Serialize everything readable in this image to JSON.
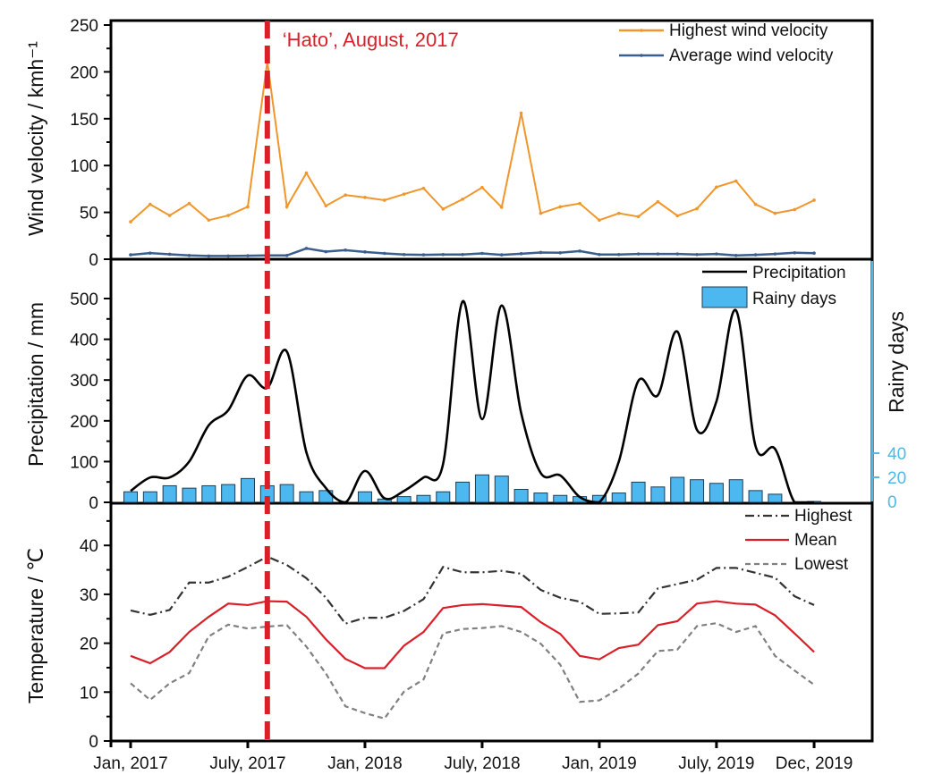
{
  "chart_data": [
    {
      "type": "line",
      "ylabel": "Wind velocity / kmh⁻¹",
      "ylim": [
        0,
        250
      ],
      "yticks": [
        "0",
        "50",
        "100",
        "150",
        "200",
        "250"
      ],
      "legend_placement": "top-right",
      "annotation": "‘Hato’, August, 2017",
      "annotation_month": "2017-08",
      "series": [
        {
          "name": "Highest wind velocity",
          "color": "#f0962a",
          "values": [
            40,
            58.6,
            46.7,
            59.5,
            41.7,
            46.7,
            56,
            211,
            56,
            92,
            57,
            68.5,
            66,
            63,
            69.5,
            75.7,
            53.6,
            64,
            76.6,
            55.5,
            156,
            49,
            56,
            59.5,
            41.7,
            49,
            45.5,
            61.4,
            46.4,
            54,
            77,
            83.5,
            58.6,
            49,
            53,
            63
          ]
        },
        {
          "name": "Average wind velocity",
          "color": "#3a5f8f",
          "values": [
            4.7,
            6.5,
            5.3,
            4,
            3.4,
            3.4,
            3.7,
            4,
            4,
            11.5,
            8.1,
            9.7,
            7.8,
            6.2,
            5,
            4.7,
            5,
            5,
            6.2,
            4.7,
            5.9,
            7.2,
            6.9,
            8.7,
            5,
            5,
            5.6,
            5.6,
            5.6,
            5,
            5.6,
            4,
            4.7,
            5.6,
            6.9,
            6.5
          ]
        }
      ]
    },
    {
      "type": "line+bar",
      "ylabel": "Precipitation / mm",
      "ylim": [
        0,
        500
      ],
      "yticks": [
        "0",
        "100",
        "200",
        "300",
        "400",
        "500"
      ],
      "y2label": "Rainy days",
      "y2ticks": [
        "0",
        "20",
        "40"
      ],
      "y2color": "#4fb8e8",
      "legend_placement": "top-right",
      "series": [
        {
          "name": "Precipitation",
          "kind": "line",
          "color": "#000000",
          "values": [
            28,
            61,
            61,
            100,
            189,
            226,
            311,
            281,
            370,
            123,
            35,
            0,
            77,
            10,
            28,
            61,
            94,
            493,
            204,
            483,
            219,
            72,
            66,
            13,
            0,
            100,
            298,
            263,
            419,
            178,
            248,
            471,
            138,
            131,
            0,
            0
          ]
        },
        {
          "name": "Rainy days",
          "kind": "bar",
          "axis": "right",
          "color": "#4db8f0",
          "values": [
            8,
            8,
            13,
            11,
            13,
            14,
            19,
            13,
            14,
            8,
            9,
            null,
            8,
            2,
            4,
            5,
            8,
            16,
            22,
            21,
            10,
            7,
            5,
            4,
            5,
            7,
            16,
            12,
            20,
            18,
            15,
            18,
            9,
            6,
            null,
            0
          ]
        }
      ]
    },
    {
      "type": "line",
      "ylabel": "Temperature / ℃",
      "ylim": [
        0,
        45
      ],
      "yticks": [
        "0",
        "10",
        "20",
        "30",
        "40"
      ],
      "legend_placement": "top-right",
      "series": [
        {
          "name": "Highest",
          "color": "#333333",
          "dash": "dash-dot",
          "values": [
            26.7,
            25.8,
            26.8,
            32.4,
            32.4,
            33.6,
            35.6,
            37.7,
            36,
            33.3,
            29.3,
            24,
            25.2,
            25.2,
            26.6,
            29,
            35.6,
            34.5,
            34.5,
            34.8,
            34.2,
            30.9,
            29.3,
            28.5,
            26,
            26.1,
            26.3,
            31.2,
            32.1,
            33,
            35.4,
            35.4,
            34.4,
            33.4,
            29.6,
            27.8
          ]
        },
        {
          "name": "Mean",
          "color": "#d9202a",
          "dash": "solid",
          "values": [
            17.4,
            15.9,
            18.2,
            22.3,
            25.4,
            28.1,
            27.8,
            28.6,
            28.5,
            25.4,
            20.8,
            16.8,
            14.9,
            14.9,
            19.5,
            22.3,
            27.2,
            27.8,
            28,
            27.7,
            27.4,
            24.3,
            21.9,
            17.4,
            16.7,
            19,
            19.7,
            23.7,
            24.5,
            28.1,
            28.6,
            28.1,
            27.9,
            25.7,
            22,
            18.2
          ]
        },
        {
          "name": "Lowest",
          "color": "#808080",
          "dash": "dashed",
          "values": [
            11.8,
            8.4,
            11.8,
            13.9,
            21.4,
            23.8,
            23,
            23.4,
            23.7,
            19.3,
            13.8,
            7.1,
            5.7,
            4.6,
            10.1,
            12.6,
            22,
            22.9,
            23.1,
            23.5,
            22.3,
            19.9,
            15.6,
            8,
            8.3,
            10.7,
            13.8,
            18.4,
            18.7,
            23.5,
            24.1,
            22.3,
            23.5,
            17.4,
            14.4,
            11.5
          ]
        }
      ]
    }
  ],
  "x": [
    "2017-01",
    "2017-02",
    "2017-03",
    "2017-04",
    "2017-05",
    "2017-06",
    "2017-07",
    "2017-08",
    "2017-09",
    "2017-10",
    "2017-11",
    "2017-12",
    "2018-01",
    "2018-02",
    "2018-03",
    "2018-04",
    "2018-05",
    "2018-06",
    "2018-07",
    "2018-08",
    "2018-09",
    "2018-10",
    "2018-11",
    "2018-12",
    "2019-01",
    "2019-02",
    "2019-03",
    "2019-04",
    "2019-05",
    "2019-06",
    "2019-07",
    "2019-08",
    "2019-09",
    "2019-10",
    "2019-11",
    "2019-12"
  ],
  "xticks": [
    {
      "label": "Jan, 2017",
      "month": 0
    },
    {
      "label": "July, 2017",
      "month": 6
    },
    {
      "label": "Jan, 2018",
      "month": 12
    },
    {
      "label": "July, 2018",
      "month": 18
    },
    {
      "label": "Jan, 2019",
      "month": 24
    },
    {
      "label": "July, 2019",
      "month": 30
    },
    {
      "label": "Dec, 2019",
      "month": 35
    }
  ],
  "annotation_color": "#d9202a"
}
